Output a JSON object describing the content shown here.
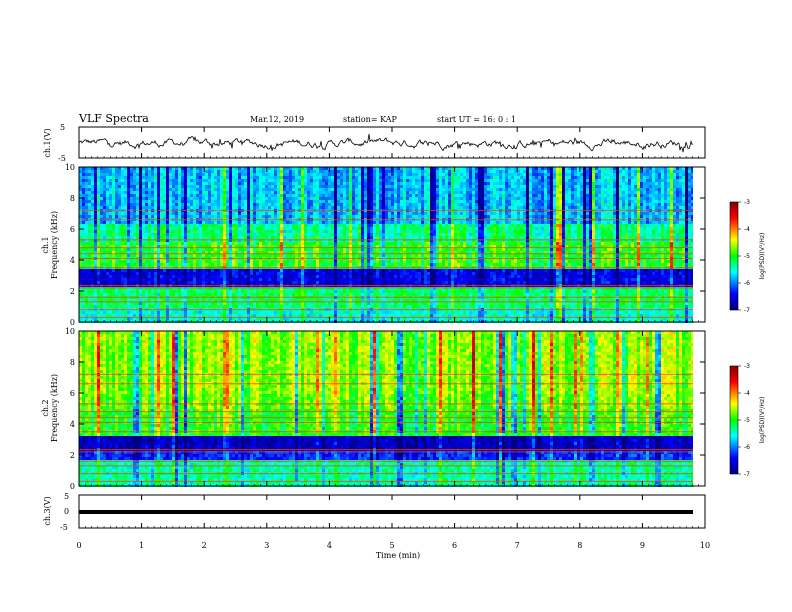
{
  "header": {
    "title": "VLF Spectra",
    "date": "Mar.12, 2019",
    "station": "station= KAP",
    "start": "start  UT  =   16: 0  : 1"
  },
  "chart_data": [
    {
      "type": "line",
      "ylabel": "ch.1(V)",
      "ylim": [
        -5,
        5
      ],
      "yticks": [
        "5",
        "-5"
      ],
      "xlim": [
        0,
        10
      ],
      "series": [
        {
          "x_range": [
            0,
            9.8
          ],
          "values": "noisy waveform around 0 V with amplitude about ±2 V"
        }
      ]
    },
    {
      "type": "heatmap",
      "ylabel": "ch.1",
      "ylabel2": "Frequency (kHz)",
      "ylim": [
        0,
        10
      ],
      "yticks": [
        "0",
        "2",
        "4",
        "6",
        "8",
        "10"
      ],
      "xlim": [
        0,
        10
      ],
      "colorbar": {
        "label": "log(PSD)(V²/Hz)",
        "range": [
          -7,
          -3
        ],
        "ticks": [
          "-3",
          "-4",
          "-5",
          "-6",
          "-7"
        ]
      },
      "bands_khz": [
        {
          "range": [
            0,
            1.0
          ],
          "level": -5.5
        },
        {
          "range": [
            1.0,
            2.3
          ],
          "level": -5.2
        },
        {
          "range": [
            2.3,
            3.6
          ],
          "level": -6.5
        },
        {
          "range": [
            3.6,
            5.2
          ],
          "level": -5.0
        },
        {
          "range": [
            5.2,
            6.5
          ],
          "level": -5.3
        },
        {
          "range": [
            6.5,
            10
          ],
          "level": -5.8
        }
      ]
    },
    {
      "type": "heatmap",
      "ylabel": "ch.2",
      "ylabel2": "Frequency (kHz)",
      "ylim": [
        0,
        10
      ],
      "yticks": [
        "0",
        "2",
        "4",
        "6",
        "8",
        "10"
      ],
      "xlim": [
        0,
        10
      ],
      "colorbar": {
        "label": "log(PSD)(V²/Hz)",
        "range": [
          -7,
          -3
        ],
        "ticks": [
          "-3",
          "-4",
          "-5",
          "-6",
          "-7"
        ]
      },
      "bands_khz": [
        {
          "range": [
            0,
            1.8
          ],
          "level": -5.4
        },
        {
          "range": [
            1.8,
            2.3
          ],
          "level": -6.3
        },
        {
          "range": [
            2.3,
            3.3
          ],
          "level": -6.7
        },
        {
          "range": [
            3.3,
            5.0
          ],
          "level": -5.0
        },
        {
          "range": [
            5.0,
            6.0
          ],
          "level": -4.8
        },
        {
          "range": [
            6.0,
            10
          ],
          "level": -4.7
        }
      ]
    },
    {
      "type": "line",
      "ylabel": "ch.3(V)",
      "ylim": [
        -5,
        5
      ],
      "yticks": [
        "5",
        "0",
        "-5"
      ],
      "xlim": [
        0,
        10
      ],
      "xlabel": "Time (min)",
      "xticks": [
        "0",
        "1",
        "2",
        "3",
        "4",
        "5",
        "6",
        "7",
        "8",
        "9",
        "10"
      ],
      "series": [
        {
          "x_range": [
            0,
            9.8
          ],
          "values": "constant -1.5 V"
        }
      ]
    }
  ]
}
